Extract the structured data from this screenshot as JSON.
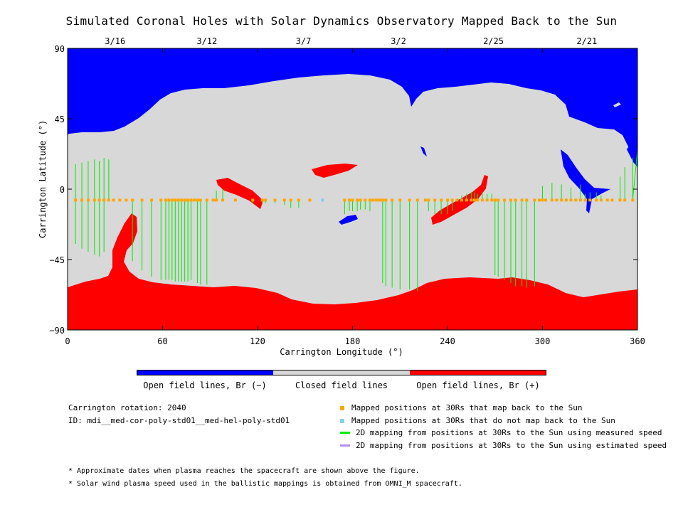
{
  "title": "Simulated Coronal Holes with Solar Dynamics Observatory Mapped Back to the Sun",
  "chart_data": {
    "type": "scatter",
    "xlabel": "Carrington Longitude (°)",
    "ylabel": "Carrington Latitude (°)",
    "xlim": [
      0,
      360
    ],
    "ylim": [
      -90,
      90
    ],
    "x_ticks": [
      "0",
      "60",
      "120",
      "180",
      "240",
      "300",
      "360"
    ],
    "y_ticks": [
      "90",
      "45",
      "0",
      "-45",
      "-90"
    ],
    "top_dates": [
      {
        "lon": 30,
        "label": "3/16"
      },
      {
        "lon": 88,
        "label": "3/12"
      },
      {
        "lon": 149,
        "label": "3/7"
      },
      {
        "lon": 209,
        "label": "3/2"
      },
      {
        "lon": 269,
        "label": "2/25"
      },
      {
        "lon": 328,
        "label": "2/21"
      }
    ],
    "mapped_lat": -7,
    "mapped_lons": [
      5,
      9,
      13,
      17,
      20,
      23,
      26,
      29,
      33,
      37,
      41,
      47,
      53,
      59,
      62,
      64,
      66,
      68,
      70,
      72,
      74,
      76,
      78,
      80,
      82,
      84,
      88,
      92,
      94,
      98,
      106,
      117,
      123,
      125,
      131,
      137,
      141,
      146,
      153,
      175,
      178,
      180,
      183,
      185,
      188,
      191,
      193,
      195,
      197,
      199,
      201,
      205,
      210,
      216,
      221,
      226,
      228,
      232,
      236,
      240,
      243,
      246,
      249,
      252,
      255,
      257,
      259,
      262,
      265,
      268,
      270,
      272,
      276,
      280,
      283,
      287,
      290,
      295,
      298,
      300,
      302,
      306,
      309,
      312,
      315,
      318,
      321,
      324,
      327,
      330,
      334,
      337,
      341,
      344,
      349,
      352,
      357
    ],
    "unmapped_lons": [
      161
    ],
    "mapping_lines": [
      [
        5,
        16
      ],
      [
        9,
        17
      ],
      [
        13,
        18
      ],
      [
        17,
        19
      ],
      [
        20,
        18
      ],
      [
        23,
        20
      ],
      [
        26,
        19
      ],
      [
        5,
        -35
      ],
      [
        9,
        -38
      ],
      [
        13,
        -40
      ],
      [
        17,
        -42
      ],
      [
        20,
        -43
      ],
      [
        23,
        -40
      ],
      [
        41,
        -46
      ],
      [
        47,
        -52
      ],
      [
        53,
        -56
      ],
      [
        59,
        -58
      ],
      [
        62,
        -58
      ],
      [
        64,
        -58
      ],
      [
        66,
        -58
      ],
      [
        68,
        -59
      ],
      [
        70,
        -59
      ],
      [
        72,
        -59
      ],
      [
        74,
        -59
      ],
      [
        76,
        -59
      ],
      [
        78,
        -58
      ],
      [
        82,
        -60
      ],
      [
        84,
        -61
      ],
      [
        88,
        -61
      ],
      [
        94,
        -1
      ],
      [
        98,
        0
      ],
      [
        106,
        -6
      ],
      [
        117,
        -9
      ],
      [
        123,
        -9
      ],
      [
        125,
        -9
      ],
      [
        131,
        -9
      ],
      [
        137,
        -10
      ],
      [
        141,
        -12
      ],
      [
        146,
        -12
      ],
      [
        175,
        -16
      ],
      [
        178,
        -14
      ],
      [
        180,
        -14
      ],
      [
        183,
        -14
      ],
      [
        185,
        -13
      ],
      [
        188,
        -13
      ],
      [
        191,
        -14
      ],
      [
        199,
        -60
      ],
      [
        201,
        -62
      ],
      [
        205,
        -63
      ],
      [
        210,
        -64
      ],
      [
        216,
        -64
      ],
      [
        221,
        -65
      ],
      [
        228,
        -14
      ],
      [
        232,
        -16
      ],
      [
        236,
        -16
      ],
      [
        240,
        -16
      ],
      [
        243,
        -14
      ],
      [
        246,
        -7
      ],
      [
        249,
        -4
      ],
      [
        252,
        -3
      ],
      [
        255,
        -2
      ],
      [
        257,
        -2
      ],
      [
        259,
        -3
      ],
      [
        262,
        -2
      ],
      [
        265,
        -3
      ],
      [
        268,
        -3
      ],
      [
        270,
        -55
      ],
      [
        272,
        -56
      ],
      [
        276,
        -58
      ],
      [
        280,
        -60
      ],
      [
        283,
        -62
      ],
      [
        287,
        -62
      ],
      [
        290,
        -63
      ],
      [
        295,
        -62
      ],
      [
        300,
        2
      ],
      [
        306,
        4
      ],
      [
        312,
        3
      ],
      [
        318,
        1
      ],
      [
        324,
        3
      ],
      [
        327,
        -3
      ],
      [
        330,
        -2
      ],
      [
        334,
        -2
      ],
      [
        337,
        -4
      ],
      [
        349,
        8
      ],
      [
        352,
        14
      ],
      [
        357,
        20
      ],
      [
        360,
        25
      ]
    ],
    "colorbar": [
      "Open field lines, Br (−)",
      "Closed field lines",
      "Open field lines, Br (+)"
    ]
  },
  "colors": {
    "negative": "#0000ff",
    "closed": "#d8d8d8",
    "positive": "#ff0000",
    "mapped": "#ffa500",
    "unmapped": "#87ceeb",
    "measured": "#00ee00",
    "estimated": "#b88cf0"
  },
  "info": {
    "rotation": "Carrington rotation: 2040",
    "id": "ID: mdi__med-cor-poly-std01__med-hel-poly-std01"
  },
  "legend": [
    "Mapped positions at 30Rs that map back to the Sun",
    "Mapped positions at 30Rs that do not map back to the Sun",
    "2D mapping from positions at 30Rs to the Sun using measured speed",
    "2D mapping from positions at 30Rs to the Sun using estimated speed"
  ],
  "footnotes": [
    "* Approximate dates when plasma reaches the spacecraft are shown above the figure.",
    "* Solar wind plasma speed used in the ballistic mappings is obtained from OMNI_M spacecraft."
  ]
}
